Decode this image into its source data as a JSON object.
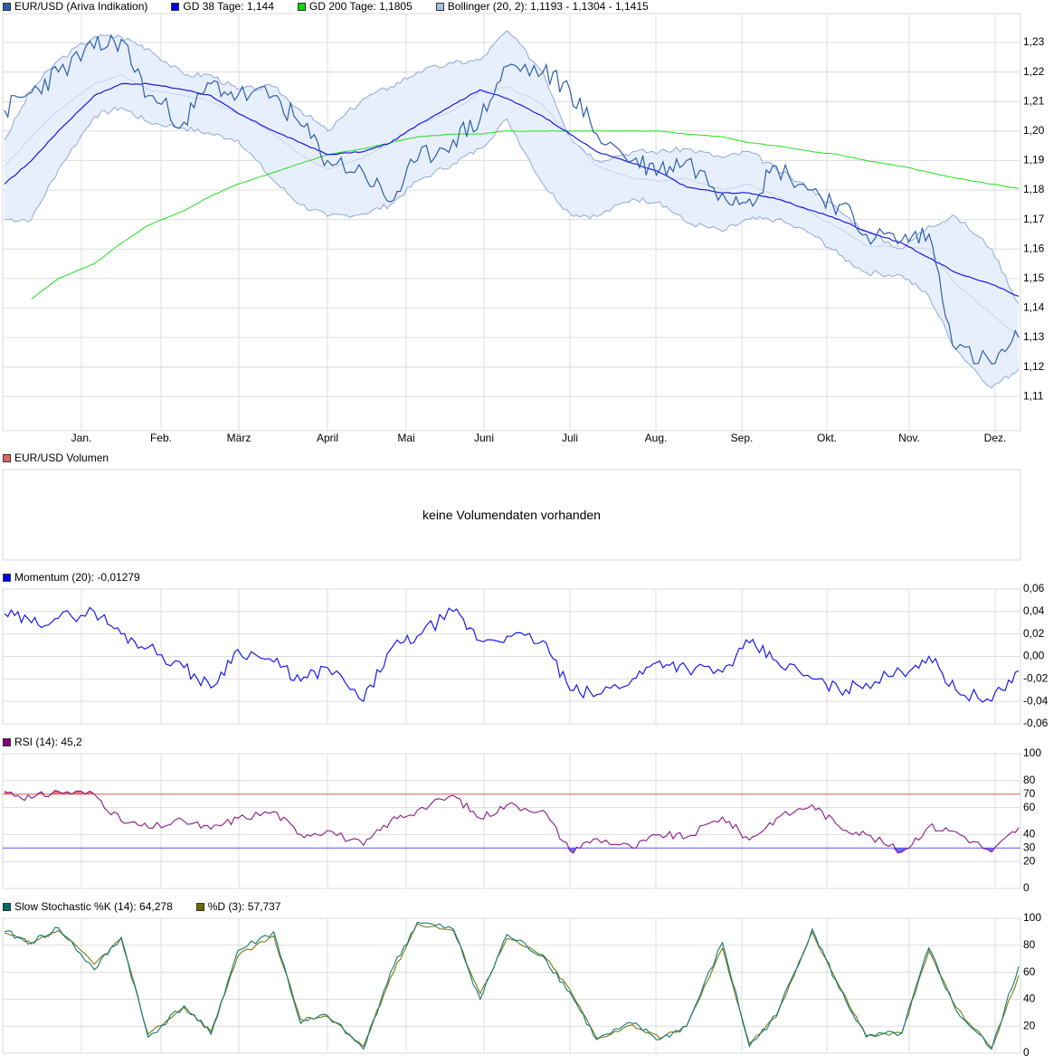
{
  "main": {
    "legend": [
      {
        "label": "EUR/USD (Ariva Indikation)",
        "color": "#2d5fa8"
      },
      {
        "label": "GD 38 Tage: 1,144",
        "color": "#0000ee"
      },
      {
        "label": "GD 200 Tage: 1,1805",
        "color": "#00dd00"
      },
      {
        "label": "Bollinger (20, 2): 1,1193 - 1,1304 - 1,1415",
        "color": "#a9bde3"
      }
    ]
  },
  "volume": {
    "legend": [
      {
        "label": "EUR/USD Volumen",
        "color": "#e06666"
      }
    ],
    "empty_message": "keine Volumendaten vorhanden"
  },
  "momentum": {
    "legend": [
      {
        "label": "Momentum (20): -0,01279",
        "color": "#0000ee"
      }
    ]
  },
  "rsi": {
    "legend": [
      {
        "label": "RSI (14): 45,2",
        "color": "#800080"
      }
    ]
  },
  "stochastic": {
    "legend": [
      {
        "label": "Slow Stochastic %K (14): 64,278",
        "color": "#006b6b"
      },
      {
        "label": "%D (3): 57,737",
        "color": "#6b6b00"
      }
    ]
  },
  "chart_data": [
    {
      "type": "line",
      "title": "EUR/USD (Ariva Indikation)",
      "xlabel": "",
      "ylabel": "",
      "x_ticks": [
        "Jan.",
        "Feb.",
        "März",
        "April",
        "Mai",
        "Juni",
        "Juli",
        "Aug.",
        "Sep.",
        "Okt.",
        "Nov.",
        "Dez."
      ],
      "y_ticks": [
        "1,11",
        "1,12",
        "1,13",
        "1,14",
        "1,15",
        "1,16",
        "1,17",
        "1,18",
        "1,19",
        "1,20",
        "1,21",
        "1,22",
        "1,23"
      ],
      "ylim": [
        1.1,
        1.24
      ],
      "grid": true,
      "legend_position": "top",
      "x": [
        0,
        0.3,
        0.6,
        1.0,
        1.3,
        1.6,
        2.0,
        2.3,
        2.6,
        3.0,
        3.3,
        3.6,
        4.0,
        4.3,
        4.6,
        5.0,
        5.3,
        5.6,
        6.0,
        6.3,
        6.6,
        7.0,
        7.3,
        7.6,
        8.0,
        8.3,
        8.6,
        9.0,
        9.3,
        9.6,
        10.0,
        10.3,
        10.6,
        11.0,
        11.3
      ],
      "series": [
        {
          "name": "EUR/USD",
          "values": [
            1.207,
            1.213,
            1.22,
            1.228,
            1.231,
            1.212,
            1.203,
            1.216,
            1.212,
            1.212,
            1.202,
            1.19,
            1.186,
            1.176,
            1.19,
            1.197,
            1.204,
            1.222,
            1.22,
            1.214,
            1.199,
            1.19,
            1.187,
            1.19,
            1.179,
            1.177,
            1.188,
            1.18,
            1.175,
            1.165,
            1.163,
            1.165,
            1.126,
            1.121,
            1.13
          ]
        },
        {
          "name": "GD 38 Tage",
          "values": [
            1.182,
            1.19,
            1.2,
            1.212,
            1.216,
            1.216,
            1.214,
            1.212,
            1.206,
            1.2,
            1.196,
            1.192,
            1.193,
            1.196,
            1.202,
            1.209,
            1.214,
            1.211,
            1.205,
            1.199,
            1.193,
            1.189,
            1.186,
            1.181,
            1.179,
            1.179,
            1.177,
            1.173,
            1.17,
            1.166,
            1.162,
            1.157,
            1.152,
            1.148,
            1.144
          ]
        },
        {
          "name": "GD 200 Tage",
          "values": [
            null,
            1.143,
            1.15,
            1.155,
            1.162,
            1.168,
            1.173,
            1.178,
            1.182,
            1.186,
            1.189,
            1.192,
            1.194,
            1.196,
            1.198,
            1.199,
            1.199,
            1.2,
            1.2,
            1.2,
            1.2,
            1.2,
            1.2,
            1.199,
            1.198,
            1.196,
            1.195,
            1.193,
            1.192,
            1.19,
            1.188,
            1.186,
            1.184,
            1.182,
            1.1805
          ]
        },
        {
          "name": "Bollinger upper",
          "values": [
            1.197,
            1.214,
            1.224,
            1.232,
            1.232,
            1.228,
            1.219,
            1.219,
            1.214,
            1.215,
            1.207,
            1.2,
            1.211,
            1.215,
            1.22,
            1.223,
            1.224,
            1.234,
            1.22,
            1.198,
            1.19,
            1.193,
            1.193,
            1.194,
            1.191,
            1.193,
            1.187,
            1.18,
            1.173,
            1.166,
            1.16,
            1.168,
            1.171,
            1.16,
            1.1415
          ]
        },
        {
          "name": "Bollinger middle",
          "values": [
            1.188,
            1.198,
            1.207,
            1.216,
            1.219,
            1.214,
            1.212,
            1.21,
            1.206,
            1.199,
            1.192,
            1.187,
            1.191,
            1.196,
            1.202,
            1.207,
            1.213,
            1.215,
            1.209,
            1.198,
            1.188,
            1.184,
            1.183,
            1.184,
            1.18,
            1.182,
            1.178,
            1.172,
            1.167,
            1.161,
            1.161,
            1.16,
            1.148,
            1.138,
            1.1304
          ]
        },
        {
          "name": "Bollinger lower",
          "values": [
            1.17,
            1.17,
            1.187,
            1.205,
            1.208,
            1.203,
            1.201,
            1.199,
            1.197,
            1.183,
            1.175,
            1.171,
            1.172,
            1.175,
            1.183,
            1.189,
            1.194,
            1.204,
            1.182,
            1.172,
            1.171,
            1.177,
            1.176,
            1.169,
            1.166,
            1.17,
            1.17,
            1.165,
            1.158,
            1.152,
            1.151,
            1.144,
            1.126,
            1.113,
            1.1193
          ]
        }
      ]
    },
    {
      "type": "line",
      "title": "EUR/USD Volumen",
      "annotation": "keine Volumendaten vorhanden",
      "series": []
    },
    {
      "type": "line",
      "title": "Momentum (20)",
      "y_ticks": [
        "0,06",
        "0,04",
        "0,02",
        "0,00",
        "-0,02",
        "-0,04",
        "-0,06"
      ],
      "ylim": [
        -0.06,
        0.06
      ],
      "grid": true,
      "x": [
        0,
        0.3,
        0.6,
        1.0,
        1.3,
        1.6,
        2.0,
        2.3,
        2.6,
        3.0,
        3.3,
        3.6,
        4.0,
        4.3,
        4.6,
        5.0,
        5.3,
        5.6,
        6.0,
        6.3,
        6.6,
        7.0,
        7.3,
        7.6,
        8.0,
        8.3,
        8.6,
        9.0,
        9.3,
        9.6,
        10.0,
        10.3,
        10.6,
        11.0,
        11.3
      ],
      "series": [
        {
          "name": "Momentum (20)",
          "values": [
            0.038,
            0.03,
            0.034,
            0.04,
            0.02,
            0.008,
            -0.01,
            -0.028,
            0.006,
            -0.005,
            -0.022,
            -0.01,
            -0.04,
            0.006,
            0.018,
            0.04,
            0.014,
            0.018,
            0.014,
            -0.03,
            -0.034,
            -0.02,
            -0.004,
            -0.01,
            -0.014,
            0.012,
            -0.004,
            -0.02,
            -0.03,
            -0.024,
            -0.014,
            0.0,
            -0.03,
            -0.04,
            -0.013
          ]
        }
      ]
    },
    {
      "type": "line",
      "title": "RSI (14)",
      "y_ticks": [
        "100",
        "80",
        "70",
        "60",
        "40",
        "30",
        "20",
        "0"
      ],
      "ylim": [
        0,
        100
      ],
      "reference_lines": [
        70,
        30
      ],
      "grid": true,
      "x": [
        0,
        0.3,
        0.6,
        1.0,
        1.3,
        1.6,
        2.0,
        2.3,
        2.6,
        3.0,
        3.3,
        3.6,
        4.0,
        4.3,
        4.6,
        5.0,
        5.3,
        5.6,
        6.0,
        6.3,
        6.6,
        7.0,
        7.3,
        7.6,
        8.0,
        8.3,
        8.6,
        9.0,
        9.3,
        9.6,
        10.0,
        10.3,
        10.6,
        11.0,
        11.3
      ],
      "series": [
        {
          "name": "RSI (14)",
          "values": [
            72,
            67,
            72,
            70,
            50,
            45,
            50,
            44,
            52,
            57,
            40,
            43,
            32,
            50,
            58,
            69,
            52,
            62,
            58,
            28,
            37,
            30,
            40,
            38,
            53,
            36,
            52,
            62,
            46,
            40,
            27,
            46,
            42,
            27,
            45.2
          ]
        }
      ]
    },
    {
      "type": "line",
      "title": "Slow Stochastic",
      "y_ticks": [
        "100",
        "80",
        "60",
        "40",
        "20",
        "0"
      ],
      "ylim": [
        0,
        100
      ],
      "grid": true,
      "x": [
        0,
        0.3,
        0.6,
        1.0,
        1.3,
        1.6,
        2.0,
        2.3,
        2.6,
        3.0,
        3.3,
        3.6,
        4.0,
        4.3,
        4.6,
        5.0,
        5.3,
        5.6,
        6.0,
        6.3,
        6.6,
        7.0,
        7.3,
        7.6,
        8.0,
        8.3,
        8.6,
        9.0,
        9.3,
        9.6,
        10.0,
        10.3,
        10.6,
        11.0,
        11.3
      ],
      "series": [
        {
          "name": "%K (14)",
          "values": [
            90,
            82,
            93,
            62,
            86,
            12,
            35,
            14,
            76,
            90,
            22,
            28,
            3,
            60,
            97,
            92,
            40,
            88,
            72,
            45,
            10,
            22,
            10,
            20,
            82,
            5,
            28,
            92,
            48,
            12,
            15,
            78,
            32,
            3,
            64.278
          ]
        },
        {
          "name": "%D (3)",
          "values": [
            89,
            81,
            91,
            66,
            85,
            14,
            34,
            16,
            72,
            87,
            25,
            27,
            5,
            56,
            96,
            91,
            44,
            85,
            73,
            47,
            11,
            21,
            11,
            20,
            78,
            7,
            27,
            90,
            50,
            13,
            15,
            76,
            34,
            4,
            57.737
          ]
        }
      ]
    }
  ]
}
